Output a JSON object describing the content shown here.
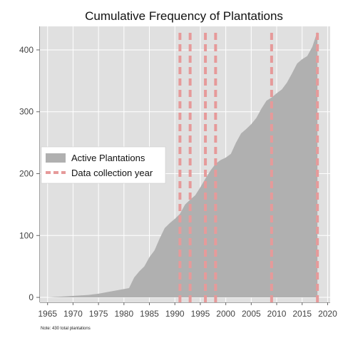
{
  "chart_data": {
    "type": "area",
    "title": "Cumulative Frequency of Plantations",
    "xlabel": "",
    "ylabel": "",
    "xlim": [
      1963.5,
      2020.5
    ],
    "ylim": [
      -8,
      438
    ],
    "grid": true,
    "legend_placement": "left",
    "x_ticks": [
      "1965",
      "1970",
      "1975",
      "1980",
      "1985",
      "1990",
      "1995",
      "2000",
      "2005",
      "2010",
      "2015",
      "2020"
    ],
    "y_ticks": [
      "0",
      "100",
      "200",
      "300",
      "400"
    ],
    "series": [
      {
        "name": "Active Plantations",
        "color": "#b0b0b0",
        "x": [
          1965,
          1967,
          1969,
          1971,
          1973,
          1975,
          1977,
          1979,
          1981,
          1982,
          1983,
          1984,
          1985,
          1986,
          1987,
          1988,
          1989,
          1990,
          1991,
          1992,
          1993,
          1994,
          1995,
          1996,
          1997,
          1998,
          1999,
          2000,
          2001,
          2002,
          2003,
          2004,
          2005,
          2006,
          2007,
          2008,
          2009,
          2010,
          2011,
          2012,
          2013,
          2014,
          2015,
          2016,
          2017,
          2018
        ],
        "values": [
          0,
          1,
          2,
          3,
          4,
          6,
          9,
          12,
          15,
          32,
          42,
          50,
          65,
          76,
          95,
          112,
          120,
          127,
          135,
          150,
          158,
          165,
          178,
          192,
          205,
          216,
          222,
          226,
          232,
          250,
          265,
          272,
          280,
          290,
          305,
          318,
          323,
          330,
          336,
          347,
          362,
          378,
          385,
          390,
          405,
          430
        ]
      }
    ],
    "collection_years": {
      "name": "Data collection year",
      "color": "#e69a9a",
      "x": [
        1991,
        1993,
        1996,
        1998,
        2009,
        2018
      ]
    }
  },
  "note": "Note: 430 total plantations"
}
